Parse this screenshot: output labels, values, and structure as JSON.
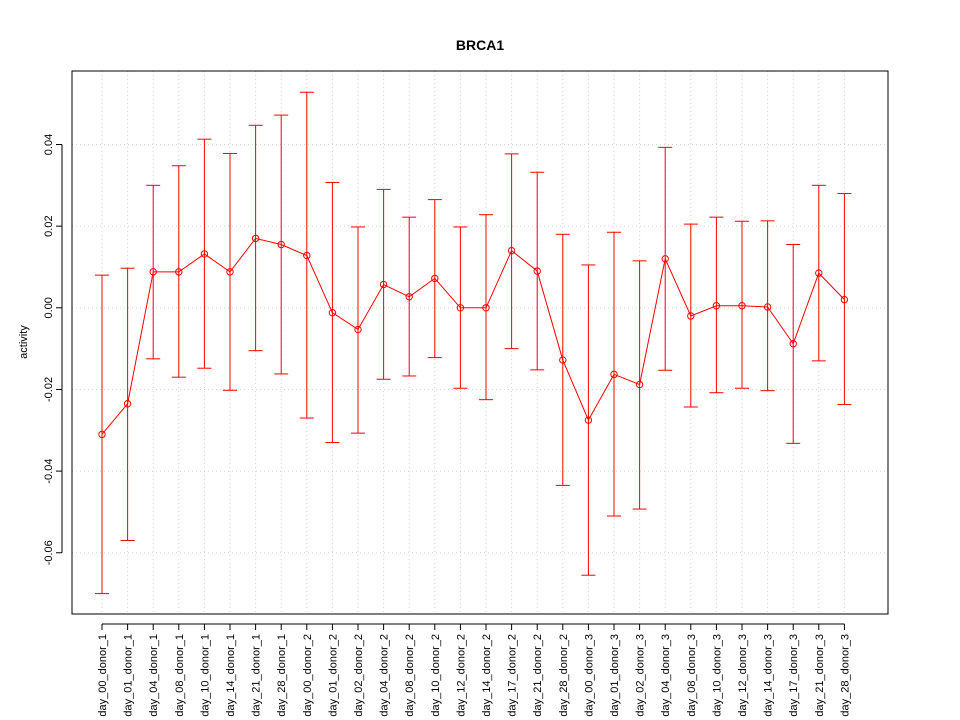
{
  "chart_data": {
    "type": "line",
    "title": "BRCA1",
    "xlabel": "",
    "ylabel": "activity",
    "ylim": [
      -0.075,
      0.058
    ],
    "yticks": [
      -0.06,
      -0.04,
      -0.02,
      0.0,
      0.02,
      0.04
    ],
    "ytick_labels": [
      "-0.06",
      "-0.04",
      "-0.02",
      "0.00",
      "0.02",
      "0.04"
    ],
    "grid": true,
    "categories": [
      "day_00_donor_1",
      "day_01_donor_1",
      "day_04_donor_1",
      "day_08_donor_1",
      "day_10_donor_1",
      "day_14_donor_1",
      "day_21_donor_1",
      "day_28_donor_1",
      "day_00_donor_2",
      "day_01_donor_2",
      "day_02_donor_2",
      "day_04_donor_2",
      "day_08_donor_2",
      "day_10_donor_2",
      "day_12_donor_2",
      "day_14_donor_2",
      "day_17_donor_2",
      "day_21_donor_2",
      "day_28_donor_2",
      "day_00_donor_3",
      "day_01_donor_3",
      "day_02_donor_3",
      "day_04_donor_3",
      "day_08_donor_3",
      "day_10_donor_3",
      "day_12_donor_3",
      "day_14_donor_3",
      "day_17_donor_3",
      "day_21_donor_3",
      "day_28_donor_3"
    ],
    "series": [
      {
        "color": "#ff0000",
        "values": [
          -0.031,
          -0.0235,
          0.0088,
          0.0088,
          0.0132,
          0.0088,
          0.017,
          0.0155,
          0.0128,
          -0.0012,
          -0.0053,
          0.0057,
          0.0027,
          0.0072,
          0.0,
          0.0,
          0.014,
          0.009,
          -0.0128,
          -0.0275,
          -0.0163,
          -0.0188,
          0.012,
          -0.002,
          0.0005,
          0.0005,
          0.0002,
          -0.0088,
          0.0085,
          0.002
        ],
        "upper": [
          0.008,
          0.0097,
          0.03,
          0.0348,
          0.0413,
          0.0378,
          0.0447,
          0.0472,
          0.0528,
          0.0307,
          0.0198,
          0.029,
          0.0222,
          0.0265,
          0.0198,
          0.0228,
          0.0377,
          0.0332,
          0.018,
          0.0105,
          0.0185,
          0.0115,
          0.0393,
          0.0205,
          0.0222,
          0.0212,
          0.0213,
          0.0155,
          0.03,
          0.028
        ],
        "lower": [
          -0.07,
          -0.057,
          -0.0125,
          -0.017,
          -0.0148,
          -0.0202,
          -0.0105,
          -0.0162,
          -0.027,
          -0.033,
          -0.0307,
          -0.0175,
          -0.0167,
          -0.0122,
          -0.0197,
          -0.0225,
          -0.01,
          -0.0152,
          -0.0435,
          -0.0655,
          -0.051,
          -0.0493,
          -0.0153,
          -0.0243,
          -0.0208,
          -0.0197,
          -0.0203,
          -0.0332,
          -0.013,
          -0.0237
        ]
      }
    ]
  }
}
